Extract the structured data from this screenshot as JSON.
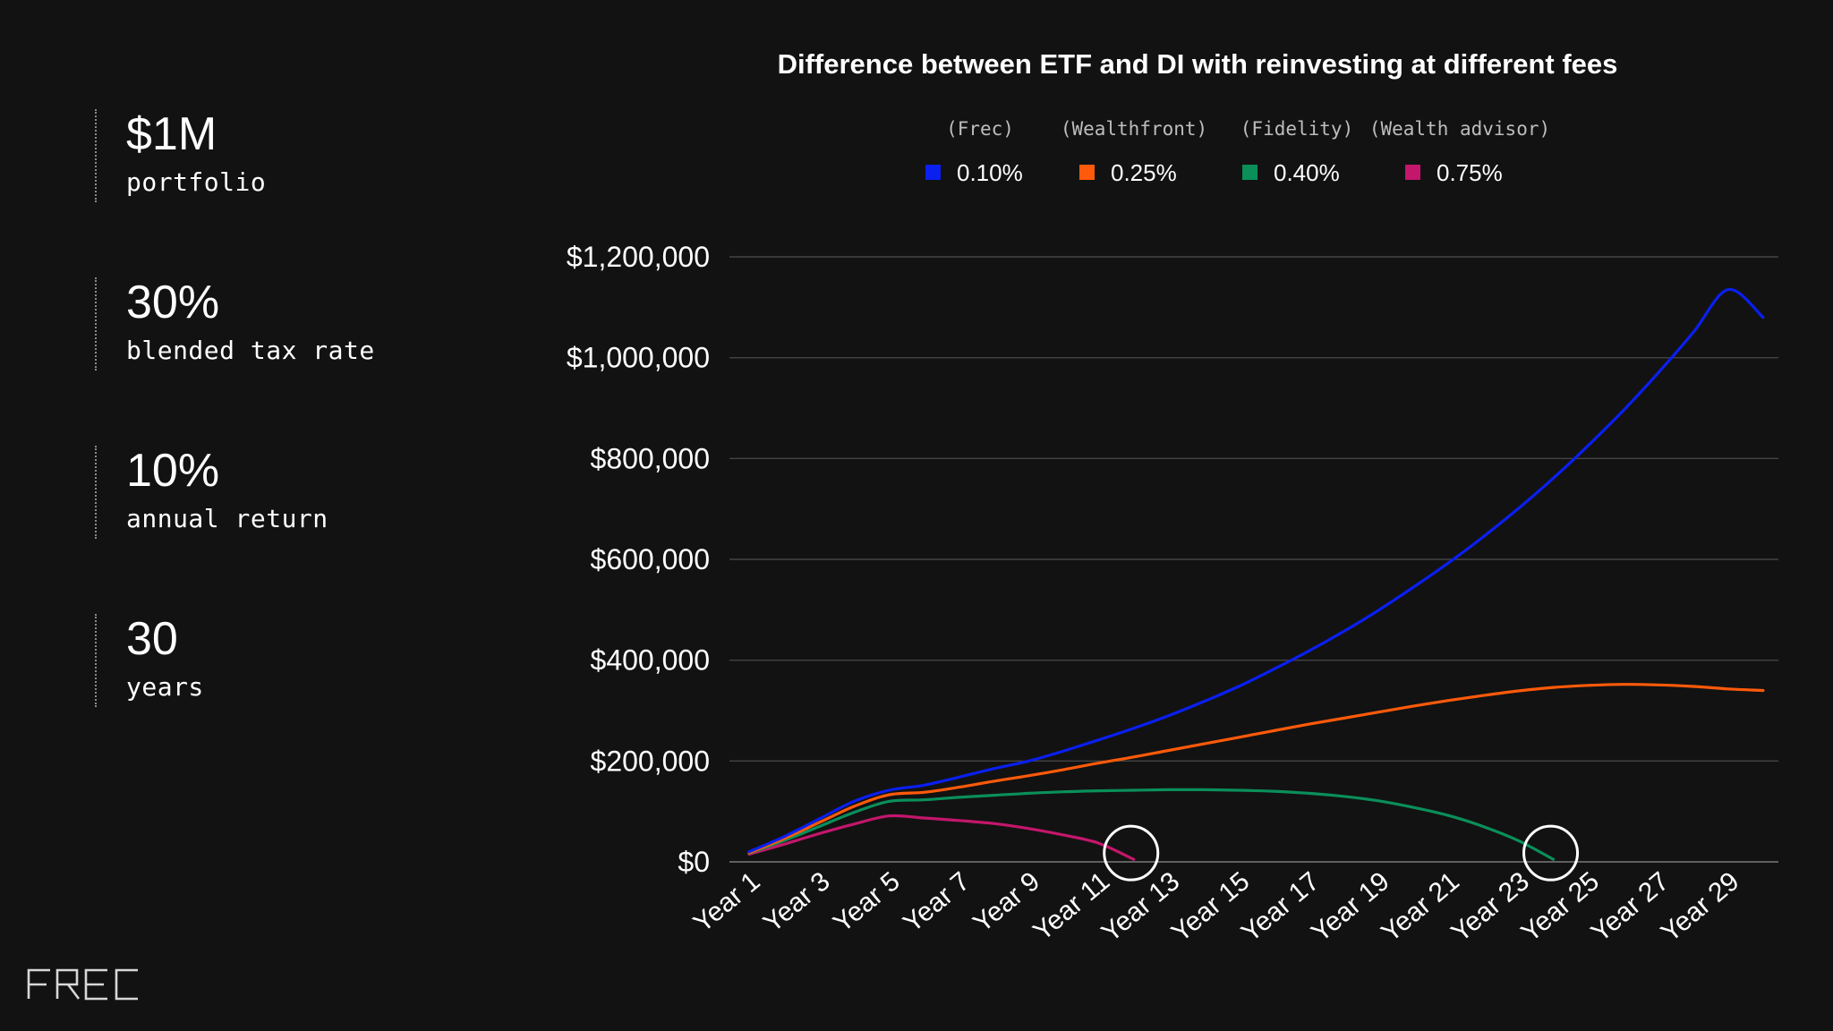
{
  "stats": [
    {
      "value": "$1M",
      "label": "portfolio"
    },
    {
      "value": "30%",
      "label": "blended tax rate"
    },
    {
      "value": "10%",
      "label": "annual return"
    },
    {
      "value": "30",
      "label": "years"
    }
  ],
  "brand": {
    "logo_text": "FREC"
  },
  "colors": {
    "background": "#121212",
    "text": "#ffffff",
    "grid": "#4a4a4a",
    "legend_sub": "#bdbdbd"
  },
  "chart_data": {
    "type": "line",
    "title": "Difference between ETF and DI with reinvesting at different fees",
    "xlabel": "",
    "ylabel": "",
    "ylim": [
      0,
      1200000
    ],
    "y_ticks": [
      0,
      200000,
      400000,
      600000,
      800000,
      1000000,
      1200000
    ],
    "y_tick_labels": [
      "$0",
      "$200,000",
      "$400,000",
      "$600,000",
      "$800,000",
      "$1,000,000",
      "$1,200,000"
    ],
    "x_ticks": [
      "Year 1",
      "Year 3",
      "Year 5",
      "Year 7",
      "Year 9",
      "Year 11",
      "Year 13",
      "Year 15",
      "Year 17",
      "Year 19",
      "Year 21",
      "Year 23",
      "Year 25",
      "Year 27",
      "Year 29"
    ],
    "x_tick_years": [
      1,
      3,
      5,
      7,
      9,
      11,
      13,
      15,
      17,
      19,
      21,
      23,
      25,
      27,
      29
    ],
    "grid": true,
    "legend_position": "top",
    "series": [
      {
        "name": "0.10%",
        "provider": "(Frec)",
        "color": "#0a1ff0",
        "x": [
          1,
          2,
          3,
          4,
          5,
          6,
          7,
          8,
          9,
          10,
          11,
          12,
          13,
          14,
          15,
          16,
          17,
          18,
          19,
          20,
          21,
          22,
          23,
          24,
          25,
          26,
          27,
          28,
          29,
          30
        ],
        "y": [
          20000,
          50000,
          85000,
          120000,
          142000,
          152000,
          168000,
          185000,
          200000,
          220000,
          242000,
          265000,
          290000,
          318000,
          348000,
          382000,
          418000,
          457000,
          499000,
          545000,
          593000,
          645000,
          701000,
          761000,
          826000,
          895000,
          970000,
          1050000,
          1135000,
          1080000
        ]
      },
      {
        "name": "0.25%",
        "provider": "(Wealthfront)",
        "color": "#ff5a0a",
        "x": [
          1,
          2,
          3,
          4,
          5,
          6,
          7,
          8,
          9,
          10,
          11,
          12,
          13,
          14,
          15,
          16,
          17,
          18,
          19,
          20,
          21,
          22,
          23,
          24,
          25,
          26,
          27,
          28,
          29,
          30
        ],
        "y": [
          18000,
          46000,
          78000,
          110000,
          133000,
          138000,
          148000,
          160000,
          171000,
          183000,
          196000,
          208000,
          221000,
          234000,
          247000,
          260000,
          273000,
          285000,
          297000,
          309000,
          320000,
          330000,
          339000,
          346000,
          350000,
          352000,
          351000,
          348000,
          343000,
          340000
        ]
      },
      {
        "name": "0.40%",
        "provider": "(Fidelity)",
        "color": "#0a8f5a",
        "x": [
          1,
          2,
          3,
          4,
          5,
          6,
          7,
          8,
          9,
          10,
          11,
          12,
          13,
          14,
          15,
          16,
          17,
          18,
          19,
          20,
          21,
          22,
          23,
          24
        ],
        "y": [
          17000,
          42000,
          70000,
          98000,
          120000,
          123000,
          128000,
          132000,
          136000,
          139000,
          141000,
          142000,
          143000,
          143000,
          142000,
          140000,
          136000,
          130000,
          121000,
          108000,
          92000,
          70000,
          42000,
          5000
        ]
      },
      {
        "name": "0.75%",
        "provider": "(Wealth advisor)",
        "color": "#c4166b",
        "x": [
          1,
          2,
          3,
          4,
          5,
          6,
          7,
          8,
          9,
          10,
          11,
          12
        ],
        "y": [
          15000,
          35000,
          56000,
          75000,
          91000,
          87000,
          82000,
          76000,
          66000,
          53000,
          37000,
          5000
        ]
      }
    ],
    "annotations": [
      {
        "type": "circle",
        "x": 12,
        "y": 5000
      },
      {
        "type": "circle",
        "x": 24,
        "y": 5000
      }
    ]
  }
}
